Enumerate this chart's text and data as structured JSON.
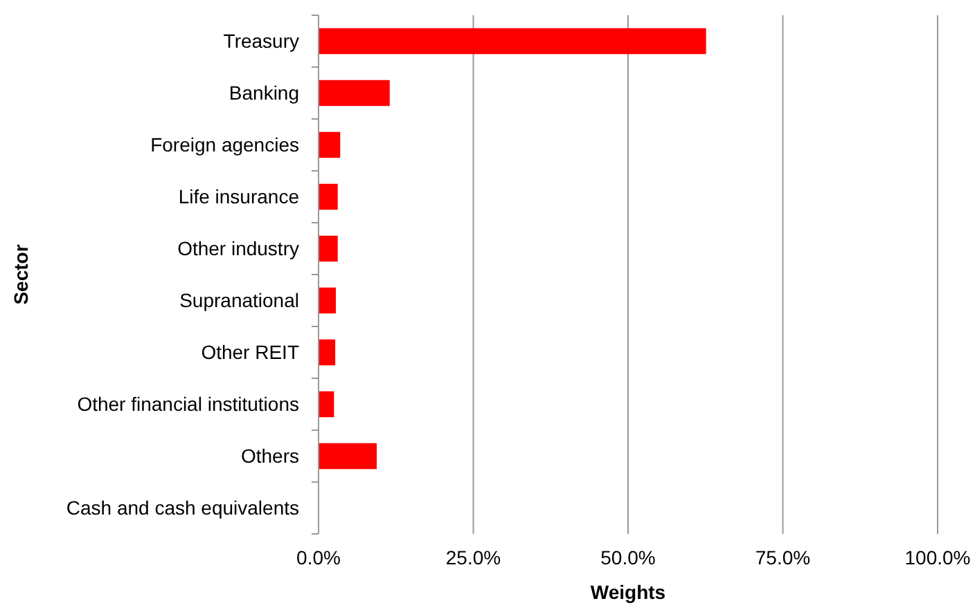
{
  "chart_data": {
    "type": "bar",
    "orientation": "horizontal",
    "xlabel": "Weights",
    "ylabel": "Sector",
    "categories": [
      "Treasury",
      "Banking",
      "Foreign agencies",
      "Life insurance",
      "Other industry",
      "Supranational",
      "Other REIT",
      "Other financial institutions",
      "Others",
      "Cash and cash equivalents"
    ],
    "values": [
      62.6,
      11.5,
      3.5,
      3.1,
      3.1,
      2.8,
      2.7,
      2.5,
      9.4,
      0
    ],
    "color": "#ff0000",
    "xlim": [
      0,
      100
    ],
    "xticks": [
      {
        "value": 0,
        "label": "0.0%"
      },
      {
        "value": 25,
        "label": "25.0%"
      },
      {
        "value": 50,
        "label": "50.0%"
      },
      {
        "value": 75,
        "label": "75.0%"
      },
      {
        "value": 100,
        "label": "100.0%"
      }
    ],
    "grid": "x"
  }
}
